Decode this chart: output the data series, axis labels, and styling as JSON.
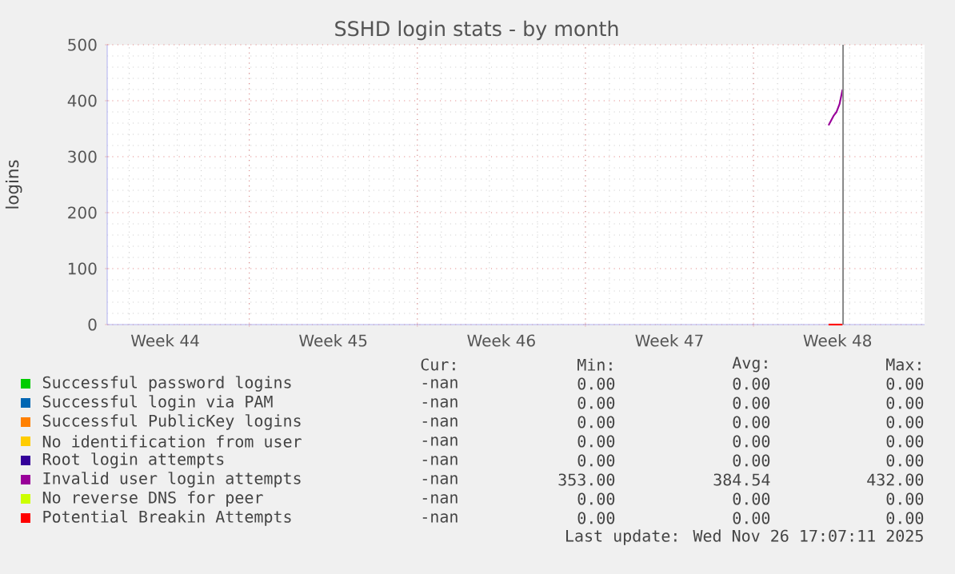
{
  "chart_data": {
    "type": "line",
    "title": "SSHD login stats - by month",
    "ylabel": "logins",
    "x": [
      "2025-11-27T03:00",
      "2025-11-27T08:00",
      "2025-11-27T11:00",
      "2025-11-27T14:00",
      "2025-11-27T17:00"
    ],
    "series": [
      {
        "name": "Successful password logins",
        "color": "#00cc00",
        "values": [
          null,
          null,
          null,
          null,
          null
        ]
      },
      {
        "name": "Successful login via PAM",
        "color": "#0066b3",
        "values": [
          null,
          null,
          null,
          null,
          null
        ]
      },
      {
        "name": "Successful PublicKey logins",
        "color": "#ff8000",
        "values": [
          null,
          null,
          null,
          null,
          null
        ]
      },
      {
        "name": "No identification from user",
        "color": "#ffcc00",
        "values": [
          null,
          null,
          null,
          null,
          null
        ]
      },
      {
        "name": "Root login attempts",
        "color": "#330099",
        "values": [
          null,
          null,
          null,
          null,
          null
        ]
      },
      {
        "name": "Invalid user login attempts",
        "color": "#990099",
        "values": [
          356,
          373,
          380,
          394,
          420
        ]
      },
      {
        "name": "No reverse DNS for peer",
        "color": "#ccff00",
        "values": [
          null,
          null,
          null,
          null,
          null
        ]
      },
      {
        "name": "Potential Breakin Attempts",
        "color": "#ff0000",
        "values": [
          0,
          0,
          0,
          0,
          0
        ]
      }
    ],
    "xlim": [
      "2025-10-28T02:00",
      "2025-12-01T03:00"
    ],
    "xticks": [
      {
        "value": "2025-10-30T12:00",
        "label": "Week 44"
      },
      {
        "value": "2025-11-03T00:00",
        "label": null
      },
      {
        "value": "2025-11-06T12:00",
        "label": "Week 45"
      },
      {
        "value": "2025-11-10T00:00",
        "label": null
      },
      {
        "value": "2025-11-13T12:00",
        "label": "Week 46"
      },
      {
        "value": "2025-11-17T00:00",
        "label": null
      },
      {
        "value": "2025-11-20T12:00",
        "label": "Week 47"
      },
      {
        "value": "2025-11-24T00:00",
        "label": null
      },
      {
        "value": "2025-11-27T12:00",
        "label": "Week 48"
      }
    ],
    "ylim": [
      0,
      500
    ],
    "yticks": [
      0,
      100,
      200,
      300,
      400,
      500
    ],
    "grid": true,
    "legend": "bottom",
    "ref_lines": [
      {
        "axis": "x",
        "value": "2025-11-27T17:30",
        "color": "#888888"
      }
    ],
    "annotations": [
      "Cur:",
      "Min:",
      "Avg:",
      "Max:",
      "-nan",
      "0.00",
      "0.00",
      "0.00",
      "-nan",
      "0.00",
      "0.00",
      "0.00",
      "-nan",
      "0.00",
      "0.00",
      "0.00",
      "-nan",
      "0.00",
      "0.00",
      "0.00",
      "-nan",
      "0.00",
      "0.00",
      "0.00",
      "-nan",
      "353.00",
      "384.54",
      "432.00",
      "-nan",
      "0.00",
      "0.00",
      "0.00",
      "-nan",
      "0.00",
      "0.00",
      "0.00",
      "Last update: Wed Nov 26 17:07:11 2025"
    ]
  }
}
